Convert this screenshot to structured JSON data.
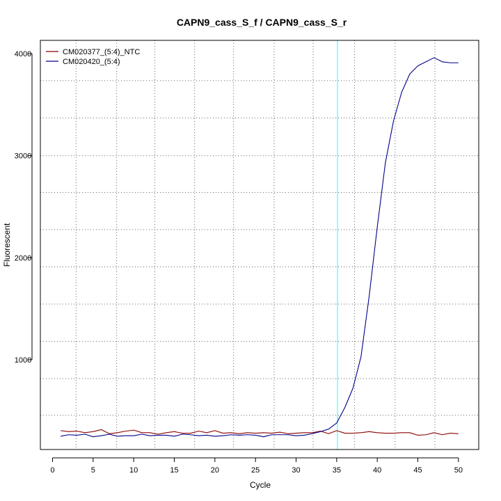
{
  "chart_data": {
    "type": "line",
    "title": "CAPN9_cass_S_f / CAPN9_cass_S_r",
    "xlabel": "Cycle",
    "ylabel": "Fluorescent",
    "xlim": [
      -1.5,
      52.5
    ],
    "ylim": [
      120,
      4130
    ],
    "x_ticks": [
      0,
      5,
      10,
      15,
      20,
      25,
      30,
      35,
      40,
      45,
      50
    ],
    "y_ticks": [
      1000,
      2000,
      3000,
      4000
    ],
    "x_grid": [
      2.9,
      7.9,
      12.6,
      17.5,
      22.3,
      27.3,
      32.1,
      37.2,
      42.2,
      47.1
    ],
    "y_grid": [
      455,
      815,
      1180,
      1545,
      1910,
      2275,
      2640,
      3000,
      3370,
      3735
    ],
    "grid": true,
    "threshold_x": 35.1,
    "threshold_color": "#66ffff",
    "legend_position": "top-left",
    "x": [
      1,
      2,
      3,
      4,
      5,
      6,
      7,
      8,
      9,
      10,
      11,
      12,
      13,
      14,
      15,
      16,
      17,
      18,
      19,
      20,
      21,
      22,
      23,
      24,
      25,
      26,
      27,
      28,
      29,
      30,
      31,
      32,
      33,
      34,
      35,
      36,
      37,
      38,
      39,
      40,
      41,
      42,
      43,
      44,
      45,
      46,
      47,
      48,
      49,
      50
    ],
    "series": [
      {
        "name": "CM020377_(5:4)_NTC",
        "color": "#8b0000",
        "values": [
          305,
          295,
          300,
          285,
          295,
          315,
          275,
          285,
          300,
          310,
          285,
          285,
          270,
          285,
          295,
          280,
          280,
          300,
          285,
          305,
          280,
          285,
          275,
          285,
          280,
          285,
          280,
          290,
          275,
          280,
          285,
          285,
          300,
          275,
          305,
          280,
          280,
          285,
          295,
          285,
          280,
          280,
          285,
          285,
          260,
          265,
          285,
          265,
          280,
          275
        ]
      },
      {
        "name": "CM020420_(5:4)",
        "color": "#00008b",
        "values": [
          250,
          265,
          260,
          270,
          245,
          255,
          270,
          250,
          255,
          255,
          270,
          255,
          260,
          260,
          250,
          270,
          265,
          255,
          260,
          250,
          255,
          265,
          260,
          265,
          260,
          245,
          265,
          265,
          265,
          255,
          260,
          275,
          295,
          320,
          380,
          530,
          720,
          1030,
          1620,
          2300,
          2930,
          3340,
          3620,
          3800,
          3880,
          3920,
          3960,
          3920,
          3910,
          3910
        ]
      }
    ]
  }
}
